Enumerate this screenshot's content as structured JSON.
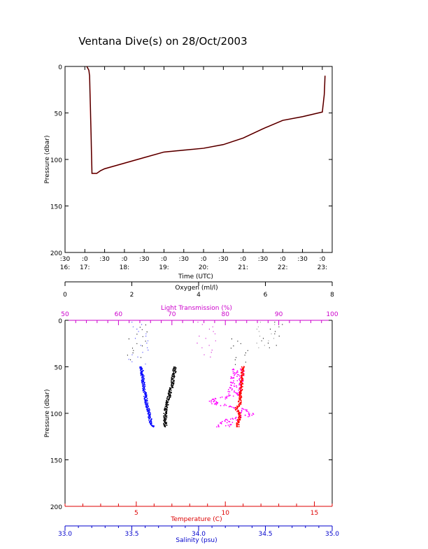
{
  "title": "Ventana Dive(s) on 28/Oct/2003",
  "chart_data": [
    {
      "type": "line",
      "xlabel": "Time (UTC)",
      "ylabel": "Pressure (dbar)",
      "yticks": [
        "0",
        "50",
        "100",
        "150",
        "200"
      ],
      "ylim": [
        0,
        200
      ],
      "xlim_hours": [
        16.5,
        23.25
      ],
      "xticks": [
        {
          "top": ":30",
          "bottom": "16:",
          "t": 16.5
        },
        {
          "top": ":0",
          "bottom": "17:",
          "t": 17.0
        },
        {
          "top": ":30",
          "bottom": "",
          "t": 17.5
        },
        {
          "top": ":0",
          "bottom": "18:",
          "t": 18.0
        },
        {
          "top": ":30",
          "bottom": "",
          "t": 18.5
        },
        {
          "top": ":0",
          "bottom": "19:",
          "t": 19.0
        },
        {
          "top": ":30",
          "bottom": "",
          "t": 19.5
        },
        {
          "top": ":0",
          "bottom": "20:",
          "t": 20.0
        },
        {
          "top": ":30",
          "bottom": "",
          "t": 20.5
        },
        {
          "top": ":0",
          "bottom": "21:",
          "t": 21.0
        },
        {
          "top": ":30",
          "bottom": "",
          "t": 21.5
        },
        {
          "top": ":0",
          "bottom": "22:",
          "t": 22.0
        },
        {
          "top": ":30",
          "bottom": "",
          "t": 22.5
        },
        {
          "top": ":0",
          "bottom": "23:",
          "t": 23.0
        }
      ],
      "series": [
        {
          "color": "#000000",
          "points": [
            [
              17.05,
              0
            ],
            [
              17.1,
              4
            ],
            [
              17.12,
              10
            ],
            [
              17.15,
              60
            ],
            [
              17.18,
              115
            ],
            [
              17.3,
              115
            ],
            [
              17.4,
              112
            ],
            [
              17.5,
              110
            ],
            [
              18.0,
              104
            ],
            [
              18.5,
              98
            ],
            [
              19.0,
              92
            ],
            [
              19.5,
              90
            ],
            [
              20.0,
              88
            ],
            [
              20.5,
              84
            ],
            [
              21.0,
              77
            ],
            [
              21.5,
              67
            ],
            [
              22.0,
              58
            ],
            [
              22.5,
              54
            ],
            [
              23.0,
              49
            ],
            [
              23.05,
              30
            ],
            [
              23.07,
              10
            ]
          ]
        }
      ]
    },
    {
      "type": "scatter",
      "ylabel": "Pressure (dbar)",
      "yticks": [
        "0",
        "50",
        "100",
        "150",
        "200"
      ],
      "ylim": [
        0,
        200
      ],
      "axes": {
        "oxygen": {
          "label": "Oxygen (ml/l)",
          "ticks": [
            "0",
            "2",
            "4",
            "6",
            "8"
          ],
          "range": [
            0,
            8
          ],
          "color": "#000000"
        },
        "light": {
          "label": "Light Transmission (%)",
          "ticks": [
            "50",
            "60",
            "70",
            "80",
            "90",
            "100"
          ],
          "range": [
            50,
            100
          ],
          "color": "#cc00cc"
        },
        "temperature": {
          "label": "Temperature (C)",
          "ticks": [
            "5",
            "10",
            "15"
          ],
          "range": [
            1,
            16
          ],
          "color": "#dd0000"
        },
        "salinity": {
          "label": "Salinity (psu)",
          "ticks": [
            "33.0",
            "33.5",
            "34.0",
            "34.5",
            "35.0"
          ],
          "range": [
            33.0,
            35.0
          ],
          "color": "#0000cc"
        }
      },
      "series": [
        {
          "axis": "salinity",
          "color": "#0000ff",
          "profile": [
            [
              50,
              33.57
            ],
            [
              70,
              33.59
            ],
            [
              90,
              33.61
            ],
            [
              100,
              33.63
            ],
            [
              108,
              33.64
            ],
            [
              115,
              33.66
            ]
          ]
        },
        {
          "axis": "oxygen",
          "color": "#000000",
          "profile": [
            [
              50,
              3.3
            ],
            [
              70,
              3.2
            ],
            [
              90,
              3.05
            ],
            [
              100,
              3.0
            ],
            [
              108,
              3.0
            ],
            [
              115,
              3.0
            ]
          ]
        },
        {
          "axis": "light",
          "color": "#ff00ff",
          "profile": [
            [
              52,
              82.5
            ],
            [
              60,
              82.3
            ],
            [
              70,
              82.0
            ],
            [
              80,
              81.5
            ],
            [
              88,
              77.0
            ],
            [
              96,
              83.0
            ],
            [
              102,
              84.5
            ],
            [
              108,
              80.5
            ],
            [
              115,
              79.5
            ]
          ]
        },
        {
          "axis": "temperature",
          "color": "#ff0000",
          "profile": [
            [
              50,
              11.0
            ],
            [
              70,
              10.9
            ],
            [
              90,
              10.8
            ],
            [
              95,
              10.6
            ],
            [
              100,
              10.8
            ],
            [
              105,
              10.8
            ],
            [
              110,
              10.7
            ],
            [
              115,
              10.7
            ]
          ]
        }
      ]
    }
  ]
}
